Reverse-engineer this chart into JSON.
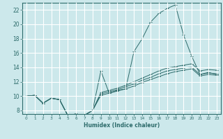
{
  "xlabel": "Humidex (Indice chaleur)",
  "bg_color": "#cce8eb",
  "grid_color": "#ffffff",
  "line_color": "#2d6b6b",
  "xlim": [
    -0.5,
    23.5
  ],
  "ylim": [
    7.5,
    23.0
  ],
  "yticks": [
    8,
    10,
    12,
    14,
    16,
    18,
    20,
    22
  ],
  "xticks": [
    0,
    1,
    2,
    3,
    4,
    5,
    6,
    7,
    8,
    9,
    10,
    11,
    12,
    13,
    14,
    15,
    16,
    17,
    18,
    19,
    20,
    21,
    22,
    23
  ],
  "series": [
    {
      "x": [
        0,
        1,
        2,
        3,
        4,
        5,
        6,
        7,
        8,
        9,
        10,
        11,
        12,
        13,
        14,
        15,
        16,
        17,
        18,
        19,
        20,
        21,
        22,
        23
      ],
      "y": [
        10,
        10.1,
        9.0,
        9.7,
        9.5,
        7.3,
        7.5,
        7.3,
        8.0,
        13.5,
        10.4,
        10.8,
        11.0,
        16.2,
        18.0,
        20.3,
        21.5,
        22.2,
        22.7,
        18.5,
        15.5,
        13.0,
        13.3,
        13.0
      ]
    },
    {
      "x": [
        0,
        1,
        2,
        3,
        4,
        5,
        6,
        7,
        8,
        9,
        10,
        11,
        12,
        13,
        14,
        15,
        16,
        17,
        18,
        19,
        20,
        21,
        22,
        23
      ],
      "y": [
        10,
        10.1,
        9.0,
        9.7,
        9.5,
        7.3,
        7.5,
        7.3,
        8.0,
        10.1,
        10.4,
        10.7,
        11.0,
        11.4,
        11.9,
        12.3,
        12.7,
        13.1,
        13.4,
        13.6,
        13.8,
        12.8,
        13.0,
        12.9
      ]
    },
    {
      "x": [
        0,
        1,
        2,
        3,
        4,
        5,
        6,
        7,
        8,
        9,
        10,
        11,
        12,
        13,
        14,
        15,
        16,
        17,
        18,
        19,
        20,
        21,
        22,
        23
      ],
      "y": [
        10,
        10.1,
        9.0,
        9.7,
        9.5,
        7.3,
        7.5,
        7.3,
        8.0,
        10.3,
        10.6,
        10.9,
        11.3,
        11.7,
        12.2,
        12.6,
        13.1,
        13.5,
        13.7,
        13.9,
        14.0,
        13.0,
        13.2,
        13.1
      ]
    },
    {
      "x": [
        0,
        1,
        2,
        3,
        4,
        5,
        6,
        7,
        8,
        9,
        10,
        11,
        12,
        13,
        14,
        15,
        16,
        17,
        18,
        19,
        20,
        21,
        22,
        23
      ],
      "y": [
        10,
        10.1,
        9.0,
        9.7,
        9.5,
        7.3,
        7.5,
        7.3,
        8.0,
        10.5,
        10.8,
        11.1,
        11.5,
        12.0,
        12.5,
        13.0,
        13.5,
        13.9,
        14.1,
        14.3,
        14.5,
        13.5,
        13.7,
        13.6
      ]
    }
  ]
}
